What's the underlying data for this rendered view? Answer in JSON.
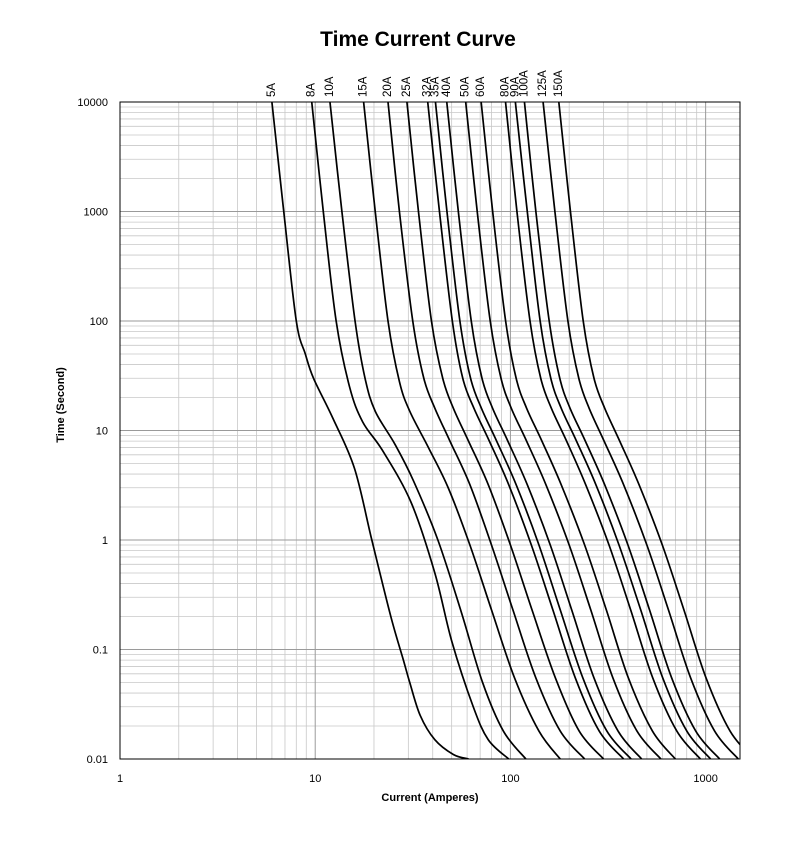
{
  "chart_data": {
    "type": "line",
    "title": "Time Current Curve",
    "xlabel": "Current (Amperes)",
    "ylabel": "Time (Second)",
    "x_scale": "log",
    "y_scale": "log",
    "xlim": [
      1,
      1500
    ],
    "ylim": [
      0.01,
      10000
    ],
    "grid": true,
    "x_ticks": [
      {
        "value": 1,
        "label": "1"
      },
      {
        "value": 10,
        "label": "10"
      },
      {
        "value": 100,
        "label": "100"
      },
      {
        "value": 1000,
        "label": "1000"
      }
    ],
    "y_ticks": [
      {
        "value": 10000,
        "label": "10000"
      },
      {
        "value": 1000,
        "label": "1000"
      },
      {
        "value": 100,
        "label": "100"
      },
      {
        "value": 10,
        "label": "10"
      },
      {
        "value": 1,
        "label": "1"
      },
      {
        "value": 0.1,
        "label": "0.1"
      },
      {
        "value": 0.01,
        "label": "0.01"
      }
    ],
    "series": [
      {
        "name": "5A",
        "x": [
          6.0,
          6.9,
          8.0,
          8.9,
          9.8,
          12.3,
          15.9,
          19.5,
          24.4,
          28.3,
          30.5,
          34.5,
          41.0,
          51.0,
          61.0
        ],
        "y": [
          10000,
          1000,
          100,
          50,
          30,
          13,
          4.5,
          1.0,
          0.2,
          0.08,
          0.05,
          0.025,
          0.015,
          0.011,
          0.01
        ]
      },
      {
        "name": "8A",
        "x": [
          9.6,
          11.0,
          12.8,
          15.0,
          17.5,
          22.2,
          31.0,
          41.0,
          50.0,
          64.5,
          77.0,
          98.0
        ],
        "y": [
          10000,
          1000,
          100,
          25,
          12,
          6.5,
          2.2,
          0.5,
          0.12,
          0.03,
          0.015,
          0.01
        ]
      },
      {
        "name": "10A",
        "x": [
          11.9,
          13.7,
          16.0,
          18.0,
          20.3,
          25.6,
          31.8,
          42.5,
          56.0,
          72.0,
          92.0,
          120.0
        ],
        "y": [
          10000,
          1000,
          100,
          30,
          15,
          7.5,
          3.5,
          1.0,
          0.22,
          0.05,
          0.018,
          0.01
        ]
      },
      {
        "name": "15A",
        "x": [
          17.7,
          20.3,
          23.6,
          27.0,
          30.5,
          38.0,
          48.0,
          62.0,
          80.0,
          105.0,
          140.0,
          180.0
        ],
        "y": [
          10000,
          1000,
          100,
          28,
          15,
          7.0,
          3.0,
          0.9,
          0.23,
          0.055,
          0.018,
          0.01
        ]
      },
      {
        "name": "20A",
        "x": [
          23.6,
          27.0,
          31.6,
          36.0,
          41.0,
          49.0,
          62.0,
          80.0,
          103.0,
          135.0,
          180.0,
          240.0
        ],
        "y": [
          10000,
          1000,
          100,
          30,
          16,
          8.0,
          3.2,
          0.9,
          0.23,
          0.055,
          0.018,
          0.01
        ]
      },
      {
        "name": "25A",
        "x": [
          29.5,
          33.8,
          39.4,
          45.0,
          51.0,
          61.0,
          77.0,
          100.0,
          129.0,
          170.0,
          225.0,
          300.0
        ],
        "y": [
          10000,
          1000,
          100,
          30,
          16,
          8.0,
          3.2,
          0.9,
          0.23,
          0.055,
          0.018,
          0.01
        ]
      },
      {
        "name": "32A",
        "x": [
          37.7,
          43.3,
          50.4,
          57.0,
          65.0,
          78.0,
          98.0,
          128.0,
          165.0,
          215.0,
          285.0,
          380.0
        ],
        "y": [
          10000,
          1000,
          100,
          30,
          16,
          8.0,
          3.2,
          0.9,
          0.23,
          0.055,
          0.018,
          0.01
        ]
      },
      {
        "name": "35A",
        "x": [
          41.3,
          47.3,
          55.1,
          62.5,
          71.0,
          85.0,
          107.0,
          140.0,
          180.0,
          235.0,
          312.0,
          415.0
        ],
        "y": [
          10000,
          1000,
          100,
          30,
          16,
          8.0,
          3.2,
          0.9,
          0.23,
          0.055,
          0.018,
          0.01
        ]
      },
      {
        "name": "40A",
        "x": [
          47.2,
          54.1,
          63.0,
          71.5,
          81.0,
          97.0,
          122.0,
          160.0,
          206.0,
          268.0,
          356.0,
          470.0
        ],
        "y": [
          10000,
          1000,
          100,
          30,
          16,
          8.0,
          3.2,
          0.9,
          0.23,
          0.055,
          0.018,
          0.01
        ]
      },
      {
        "name": "50A",
        "x": [
          59.0,
          67.6,
          78.8,
          89.5,
          101.0,
          121.0,
          152.0,
          200.0,
          258.0,
          335.0,
          445.0,
          590.0
        ],
        "y": [
          10000,
          1000,
          100,
          30,
          16,
          8.0,
          3.2,
          0.9,
          0.23,
          0.055,
          0.018,
          0.01
        ]
      },
      {
        "name": "60A",
        "x": [
          70.8,
          81.1,
          94.5,
          107.0,
          121.0,
          145.0,
          182.0,
          240.0,
          310.0,
          402.0,
          534.0,
          700.0
        ],
        "y": [
          10000,
          1000,
          100,
          30,
          16,
          8.0,
          3.2,
          0.9,
          0.23,
          0.055,
          0.018,
          0.01
        ]
      },
      {
        "name": "80A",
        "x": [
          94.4,
          108.0,
          126.0,
          143.0,
          162.0,
          194.0,
          243.0,
          320.0,
          413.0,
          536.0,
          712.0,
          940.0
        ],
        "y": [
          10000,
          1000,
          100,
          30,
          16,
          8.0,
          3.2,
          0.9,
          0.23,
          0.055,
          0.018,
          0.01
        ]
      },
      {
        "name": "90A",
        "x": [
          106.0,
          122.0,
          142.0,
          161.0,
          182.0,
          218.0,
          274.0,
          360.0,
          465.0,
          603.0,
          801.0,
          1060.0
        ],
        "y": [
          10000,
          1000,
          100,
          30,
          16,
          8.0,
          3.2,
          0.9,
          0.23,
          0.055,
          0.018,
          0.01
        ]
      },
      {
        "name": "100A",
        "x": [
          118.0,
          135.0,
          158.0,
          179.0,
          202.0,
          242.0,
          304.0,
          400.0,
          516.0,
          670.0,
          890.0,
          1180.0
        ],
        "y": [
          10000,
          1000,
          100,
          30,
          16,
          8.0,
          3.2,
          0.9,
          0.23,
          0.055,
          0.018,
          0.01
        ]
      },
      {
        "name": "125A",
        "x": [
          147.0,
          169.0,
          197.0,
          224.0,
          253.0,
          302.0,
          380.0,
          500.0,
          645.0,
          838.0,
          1112.0,
          1470.0
        ],
        "y": [
          10000,
          1000,
          100,
          30,
          16,
          8.0,
          3.2,
          0.9,
          0.23,
          0.055,
          0.018,
          0.01
        ]
      },
      {
        "name": "150A",
        "x": [
          177.0,
          203.0,
          236.0,
          268.0,
          304.0,
          363.0,
          456.0,
          600.0,
          774.0,
          1005.0,
          1334.0,
          1760.0
        ],
        "y": [
          10000,
          1000,
          100,
          30,
          16,
          8.0,
          3.2,
          0.9,
          0.23,
          0.055,
          0.018,
          0.01
        ]
      }
    ]
  }
}
